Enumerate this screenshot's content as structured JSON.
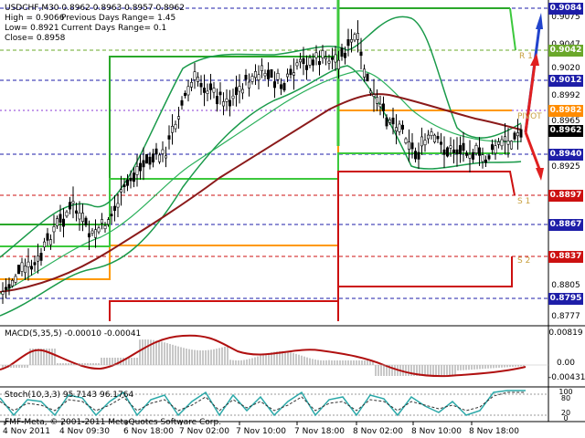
{
  "chart": {
    "title_line": "USDCHF,M30  0.8962 0.8963 0.8957 0.8962",
    "high_label": "High = 0.9066",
    "prev_range_label": "Previous Days Range= 1.45",
    "low_label": "Low= 0.8921",
    "curr_range_label": "Current Days Range= 0.1",
    "close_label": "Close= 0.8958",
    "pivot_labels": {
      "r1": "R 1",
      "pivot": "PIVOT",
      "s1": "S 1",
      "s2": "S 2"
    },
    "price_axis": {
      "tags": [
        {
          "value": "0.9084",
          "color": "#1e1ea8"
        },
        {
          "value": "0.9042",
          "color": "#6aa82a"
        },
        {
          "value": "0.9012",
          "color": "#1e1ea8"
        },
        {
          "value": "0.8982",
          "color": "#ff8c00"
        },
        {
          "value": "0.8962",
          "color": "#000000"
        },
        {
          "value": "0.8940",
          "color": "#1e1ea8"
        },
        {
          "value": "0.8897",
          "color": "#cc1010"
        },
        {
          "value": "0.8867",
          "color": "#1e1ea8"
        },
        {
          "value": "0.8837",
          "color": "#cc1010"
        },
        {
          "value": "0.8795",
          "color": "#1e1ea8"
        }
      ],
      "plain": [
        "0.9075",
        "0.9047",
        "0.9020",
        "0.8992",
        "0.8965",
        "0.8925",
        "0.8805",
        "0.8777"
      ]
    },
    "macd": {
      "title": "MACD(5,35,5) -0.00010 -0.00041",
      "axis": [
        "0.00819",
        "0.00",
        "-0.00431"
      ]
    },
    "stoch": {
      "title": "Stoch(10,3,3) 95.7143 96.1764",
      "axis": [
        "100",
        "80",
        "20",
        "0"
      ]
    },
    "time_axis": [
      "4 Nov 2011",
      "4 Nov 09:30",
      "6 Nov 18:00",
      "7 Nov 02:00",
      "7 Nov 10:00",
      "7 Nov 18:00",
      "8 Nov 02:00",
      "8 Nov 10:00",
      "8 Nov 18:00"
    ],
    "copyright": "FMF-Meta, © 2001-2011 MetaQuotes Software Corp."
  }
}
